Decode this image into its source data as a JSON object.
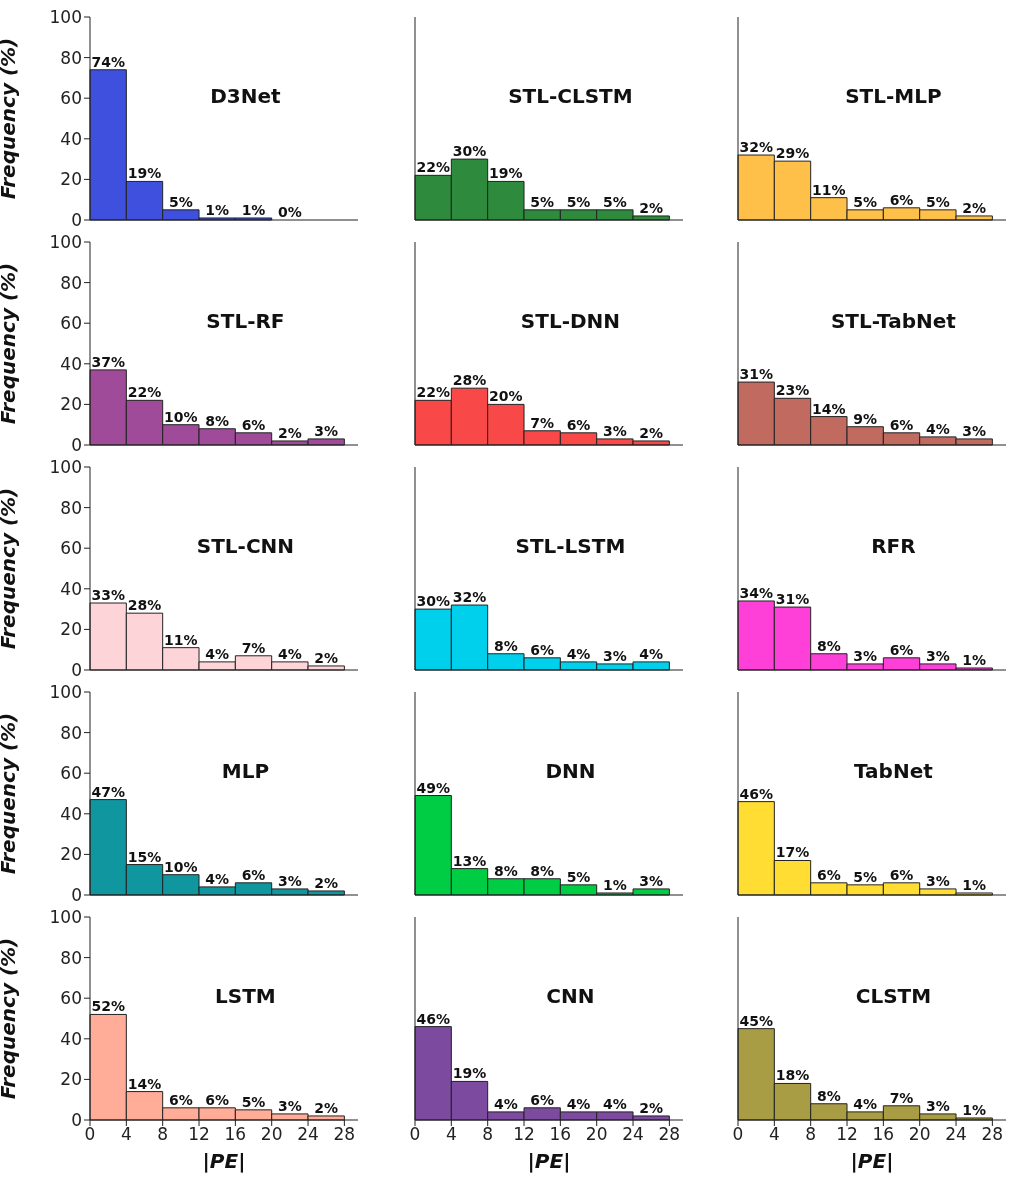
{
  "chart_data": [
    {
      "type": "histogram",
      "title": "D3Net",
      "ylabel": "Frequency (%)",
      "bins": [
        0,
        4,
        8,
        12,
        16,
        20,
        24
      ],
      "values": [
        74,
        19,
        5,
        1,
        1,
        0
      ],
      "value_labels": [
        "74%",
        "19%",
        "5%",
        "1%",
        "1%",
        "0%"
      ],
      "color": "#4050de",
      "xlim": [
        0,
        29.5
      ],
      "xticks": [
        0,
        4,
        8,
        12,
        16,
        20,
        24,
        28
      ],
      "ylim": [
        0,
        100
      ],
      "yticks": [
        0,
        20,
        40,
        60,
        80,
        100
      ],
      "tick_labels": "y"
    },
    {
      "type": "histogram",
      "title": "STL-CLSTM",
      "bins": [
        0,
        4,
        8,
        12,
        16,
        20,
        24,
        28
      ],
      "values": [
        22,
        30,
        19,
        5,
        5,
        5,
        2
      ],
      "value_labels": [
        "22%",
        "30%",
        "19%",
        "5%",
        "5%",
        "5%",
        "2%"
      ],
      "color": "#2e8b3e",
      "xlim": [
        0,
        29.5
      ],
      "xticks": [
        0,
        4,
        8,
        12,
        16,
        20,
        24,
        28
      ],
      "ylim": [
        0,
        100
      ],
      "yticks": [
        0,
        20,
        40,
        60,
        80,
        100
      ],
      "tick_labels": false
    },
    {
      "type": "histogram",
      "title": "STL-MLP",
      "bins": [
        0,
        4,
        8,
        12,
        16,
        20,
        24,
        28
      ],
      "values": [
        32,
        29,
        11,
        5,
        6,
        5,
        2
      ],
      "value_labels": [
        "32%",
        "29%",
        "11%",
        "5%",
        "6%",
        "5%",
        "2%"
      ],
      "color": "#ffc04a",
      "xlim": [
        0,
        29.5
      ],
      "xticks": [
        0,
        4,
        8,
        12,
        16,
        20,
        24,
        28
      ],
      "ylim": [
        0,
        100
      ],
      "yticks": [
        0,
        20,
        40,
        60,
        80,
        100
      ],
      "tick_labels": false
    },
    {
      "type": "histogram",
      "title": "STL-RF",
      "ylabel": "Frequency (%)",
      "bins": [
        0,
        4,
        8,
        12,
        16,
        20,
        24,
        28
      ],
      "values": [
        37,
        22,
        10,
        8,
        6,
        2,
        3
      ],
      "value_labels": [
        "37%",
        "22%",
        "10%",
        "8%",
        "6%",
        "2%",
        "3%"
      ],
      "color": "#a04a9a",
      "xlim": [
        0,
        29.5
      ],
      "xticks": [
        0,
        4,
        8,
        12,
        16,
        20,
        24,
        28
      ],
      "ylim": [
        0,
        100
      ],
      "yticks": [
        0,
        20,
        40,
        60,
        80,
        100
      ],
      "tick_labels": "y"
    },
    {
      "type": "histogram",
      "title": "STL-DNN",
      "bins": [
        0,
        4,
        8,
        12,
        16,
        20,
        24,
        28
      ],
      "values": [
        22,
        28,
        20,
        7,
        6,
        3,
        2
      ],
      "value_labels": [
        "22%",
        "28%",
        "20%",
        "7%",
        "6%",
        "3%",
        "2%"
      ],
      "color": "#f84848",
      "xlim": [
        0,
        29.5
      ],
      "xticks": [
        0,
        4,
        8,
        12,
        16,
        20,
        24,
        28
      ],
      "ylim": [
        0,
        100
      ],
      "yticks": [
        0,
        20,
        40,
        60,
        80,
        100
      ],
      "tick_labels": false
    },
    {
      "type": "histogram",
      "title": "STL-TabNet",
      "bins": [
        0,
        4,
        8,
        12,
        16,
        20,
        24,
        28
      ],
      "values": [
        31,
        23,
        14,
        9,
        6,
        4,
        3
      ],
      "value_labels": [
        "31%",
        "23%",
        "14%",
        "9%",
        "6%",
        "4%",
        "3%"
      ],
      "color": "#c06a60",
      "xlim": [
        0,
        29.5
      ],
      "xticks": [
        0,
        4,
        8,
        12,
        16,
        20,
        24,
        28
      ],
      "ylim": [
        0,
        100
      ],
      "yticks": [
        0,
        20,
        40,
        60,
        80,
        100
      ],
      "tick_labels": false
    },
    {
      "type": "histogram",
      "title": "STL-CNN",
      "ylabel": "Frequency (%)",
      "bins": [
        0,
        4,
        8,
        12,
        16,
        20,
        24,
        28
      ],
      "values": [
        33,
        28,
        11,
        4,
        7,
        4,
        2
      ],
      "value_labels": [
        "33%",
        "28%",
        "11%",
        "4%",
        "7%",
        "4%",
        "2%"
      ],
      "color": "#fdd5d8",
      "xlim": [
        0,
        29.5
      ],
      "xticks": [
        0,
        4,
        8,
        12,
        16,
        20,
        24,
        28
      ],
      "ylim": [
        0,
        100
      ],
      "yticks": [
        0,
        20,
        40,
        60,
        80,
        100
      ],
      "tick_labels": "y"
    },
    {
      "type": "histogram",
      "title": "STL-LSTM",
      "bins": [
        0,
        4,
        8,
        12,
        16,
        20,
        24,
        28
      ],
      "values": [
        30,
        32,
        8,
        6,
        4,
        3,
        4
      ],
      "value_labels": [
        "30%",
        "32%",
        "8%",
        "6%",
        "4%",
        "3%",
        "4%"
      ],
      "color": "#00d0ec",
      "xlim": [
        0,
        29.5
      ],
      "xticks": [
        0,
        4,
        8,
        12,
        16,
        20,
        24,
        28
      ],
      "ylim": [
        0,
        100
      ],
      "yticks": [
        0,
        20,
        40,
        60,
        80,
        100
      ],
      "tick_labels": false
    },
    {
      "type": "histogram",
      "title": "RFR",
      "bins": [
        0,
        4,
        8,
        12,
        16,
        20,
        24,
        28
      ],
      "values": [
        34,
        31,
        8,
        3,
        6,
        3,
        1
      ],
      "value_labels": [
        "34%",
        "31%",
        "8%",
        "3%",
        "6%",
        "3%",
        "1%"
      ],
      "color": "#ff40d8",
      "xlim": [
        0,
        29.5
      ],
      "xticks": [
        0,
        4,
        8,
        12,
        16,
        20,
        24,
        28
      ],
      "ylim": [
        0,
        100
      ],
      "yticks": [
        0,
        20,
        40,
        60,
        80,
        100
      ],
      "tick_labels": false
    },
    {
      "type": "histogram",
      "title": "MLP",
      "ylabel": "Frequency (%)",
      "bins": [
        0,
        4,
        8,
        12,
        16,
        20,
        24,
        28
      ],
      "values": [
        47,
        15,
        10,
        4,
        6,
        3,
        2
      ],
      "value_labels": [
        "47%",
        "15%",
        "10%",
        "4%",
        "6%",
        "3%",
        "2%"
      ],
      "color": "#10969f",
      "xlim": [
        0,
        29.5
      ],
      "xticks": [
        0,
        4,
        8,
        12,
        16,
        20,
        24,
        28
      ],
      "ylim": [
        0,
        100
      ],
      "yticks": [
        0,
        20,
        40,
        60,
        80,
        100
      ],
      "tick_labels": "y"
    },
    {
      "type": "histogram",
      "title": "DNN",
      "bins": [
        0,
        4,
        8,
        12,
        16,
        20,
        24,
        28
      ],
      "values": [
        49,
        13,
        8,
        8,
        5,
        1,
        3
      ],
      "value_labels": [
        "49%",
        "13%",
        "8%",
        "8%",
        "5%",
        "1%",
        "3%"
      ],
      "color": "#00cc44",
      "xlim": [
        0,
        29.5
      ],
      "xticks": [
        0,
        4,
        8,
        12,
        16,
        20,
        24,
        28
      ],
      "ylim": [
        0,
        100
      ],
      "yticks": [
        0,
        20,
        40,
        60,
        80,
        100
      ],
      "tick_labels": false
    },
    {
      "type": "histogram",
      "title": "TabNet",
      "bins": [
        0,
        4,
        8,
        12,
        16,
        20,
        24,
        28
      ],
      "values": [
        46,
        17,
        6,
        5,
        6,
        3,
        1
      ],
      "value_labels": [
        "46%",
        "17%",
        "6%",
        "5%",
        "6%",
        "3%",
        "1%"
      ],
      "color": "#ffdd33",
      "xlim": [
        0,
        29.5
      ],
      "xticks": [
        0,
        4,
        8,
        12,
        16,
        20,
        24,
        28
      ],
      "ylim": [
        0,
        100
      ],
      "yticks": [
        0,
        20,
        40,
        60,
        80,
        100
      ],
      "tick_labels": false
    },
    {
      "type": "histogram",
      "title": "LSTM",
      "ylabel": "Frequency (%)",
      "xlabel": "|PE|",
      "bins": [
        0,
        4,
        8,
        12,
        16,
        20,
        24,
        28
      ],
      "values": [
        52,
        14,
        6,
        6,
        5,
        3,
        2
      ],
      "value_labels": [
        "52%",
        "14%",
        "6%",
        "6%",
        "5%",
        "3%",
        "2%"
      ],
      "color": "#ffad98",
      "xlim": [
        0,
        29.5
      ],
      "xticks": [
        0,
        4,
        8,
        12,
        16,
        20,
        24,
        28
      ],
      "ylim": [
        0,
        100
      ],
      "yticks": [
        0,
        20,
        40,
        60,
        80,
        100
      ]
    },
    {
      "type": "histogram",
      "title": "CNN",
      "xlabel": "|PE|",
      "bins": [
        0,
        4,
        8,
        12,
        16,
        20,
        24,
        28
      ],
      "values": [
        46,
        19,
        4,
        6,
        4,
        4,
        2
      ],
      "value_labels": [
        "46%",
        "19%",
        "4%",
        "6%",
        "4%",
        "4%",
        "2%"
      ],
      "color": "#7c4b9f",
      "xlim": [
        0,
        29.5
      ],
      "xticks": [
        0,
        4,
        8,
        12,
        16,
        20,
        24,
        28
      ],
      "ylim": [
        0,
        100
      ],
      "yticks": [
        0,
        20,
        40,
        60,
        80,
        100
      ],
      "tick_labels": "x"
    },
    {
      "type": "histogram",
      "title": "CLSTM",
      "xlabel": "|PE|",
      "bins": [
        0,
        4,
        8,
        12,
        16,
        20,
        24,
        28
      ],
      "values": [
        45,
        18,
        8,
        4,
        7,
        3,
        1
      ],
      "value_labels": [
        "45%",
        "18%",
        "8%",
        "4%",
        "7%",
        "3%",
        "1%"
      ],
      "color": "#a89d44",
      "xlim": [
        0,
        29.5
      ],
      "xticks": [
        0,
        4,
        8,
        12,
        16,
        20,
        24,
        28
      ],
      "ylim": [
        0,
        100
      ],
      "yticks": [
        0,
        20,
        40,
        60,
        80,
        100
      ],
      "tick_labels": "x"
    }
  ]
}
